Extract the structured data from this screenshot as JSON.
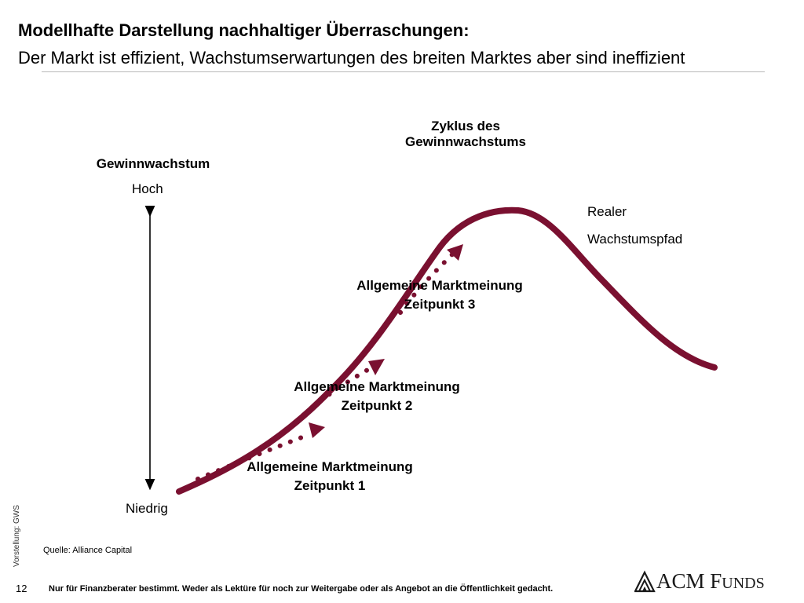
{
  "header": {
    "title": "Modellhafte Darstellung nachhaltiger Überraschungen:",
    "subtitle": "Der Markt ist effizient, Wachstumserwartungen des breiten Marktes aber sind ineffizient"
  },
  "diagram": {
    "cycle_title": [
      "Zyklus des",
      "Gewinnwachstums"
    ],
    "axis": {
      "title": "Gewinnwachstum",
      "high_label": "Hoch",
      "low_label": "Niedrig"
    },
    "real_path_label": [
      "Realer",
      "Wachstumspfad"
    ],
    "market_opinions": [
      {
        "line1": "Allgemeine Marktmeinung",
        "line2": "Zeitpunkt 1"
      },
      {
        "line1": "Allgemeine Marktmeinung",
        "line2": "Zeitpunkt 2"
      },
      {
        "line1": "Allgemeine Marktmeinung",
        "line2": "Zeitpunkt 3"
      }
    ],
    "colors": {
      "curve": "#7a1030",
      "arrow_axis": "#000000"
    }
  },
  "footer": {
    "side_note": "Vorstellung: GWS",
    "source": "Quelle: Alliance Capital",
    "page_number": "12",
    "disclaimer": "Nur für Finanzberater bestimmt. Weder als Lektüre für noch zur Weitergabe oder als Angebot an die Öffentlichkeit gedacht.",
    "logo": {
      "main": "ACM F",
      "small_caps": "UNDS"
    }
  }
}
